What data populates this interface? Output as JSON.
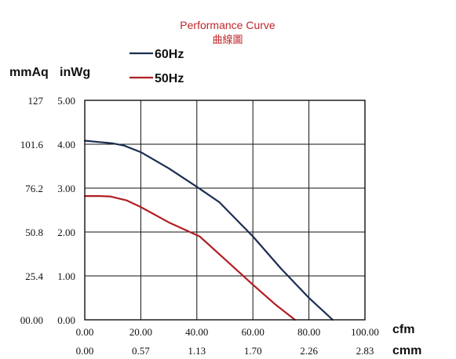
{
  "chart_data": {
    "type": "line",
    "title": "Performance Curve",
    "subtitle": "曲線圖",
    "y_units": [
      "mmAq",
      "inWg"
    ],
    "x_units": [
      "cfm",
      "cmm"
    ],
    "xlim": [
      0,
      100
    ],
    "ylim": [
      0,
      5
    ],
    "grid": true,
    "legend_position": "top-left",
    "x_ticks_cfm": [
      "0.00",
      "20.00",
      "40.00",
      "60.00",
      "80.00",
      "100.00"
    ],
    "x_ticks_cmm": [
      "0.00",
      "0.57",
      "1.13",
      "1.70",
      "2.26",
      "2.83"
    ],
    "y_ticks_inwg": [
      "0.00",
      "1.00",
      "2.00",
      "3.00",
      "4.00",
      "5.00"
    ],
    "y_ticks_mmaq": [
      "00.00",
      "25.4",
      "50.8",
      "76.2",
      "101.6",
      "127"
    ],
    "series": [
      {
        "name": "60Hz",
        "color": "#1b2d52",
        "x": [
          0,
          5,
          10,
          14,
          20,
          30,
          40,
          48,
          60,
          70,
          80,
          88.5
        ],
        "y": [
          4.08,
          4.05,
          4.02,
          3.97,
          3.82,
          3.45,
          3.03,
          2.68,
          1.9,
          1.17,
          0.5,
          0.0
        ]
      },
      {
        "name": "50Hz",
        "color": "#b11e23",
        "x": [
          0,
          5,
          9,
          15,
          20,
          30,
          41,
          50,
          60,
          68,
          75
        ],
        "y": [
          2.82,
          2.82,
          2.81,
          2.72,
          2.57,
          2.22,
          1.9,
          1.38,
          0.8,
          0.35,
          0.0
        ]
      }
    ]
  }
}
